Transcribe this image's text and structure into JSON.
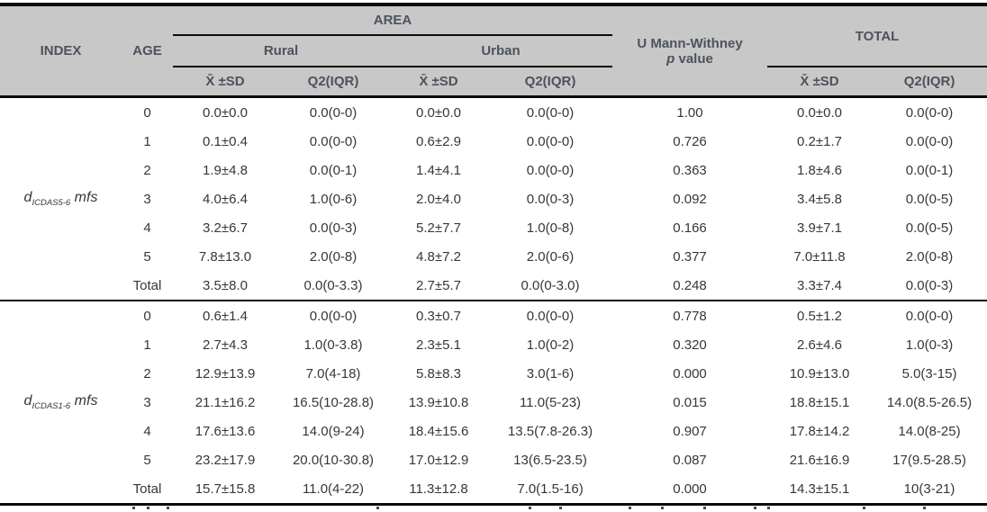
{
  "header": {
    "index": "INDEX",
    "age": "AGE",
    "area": "AREA",
    "rural": "Rural",
    "urban": "Urban",
    "mann_line1": "U Mann-Withney",
    "mann_p": "p",
    "mann_value": "value",
    "total": "TOTAL",
    "xsd": "X̄ ±SD",
    "q2": "Q2(IQR)"
  },
  "columns_order": [
    "age",
    "rural_xsd",
    "rural_q2",
    "urban_xsd",
    "urban_q2",
    "p_value",
    "total_xsd",
    "total_q2"
  ],
  "groups": [
    {
      "label": {
        "base": "d",
        "sub": "ICDAS5-6",
        "suffix": "mfs"
      },
      "rows": [
        [
          "0",
          "0.0±0.0",
          "0.0(0-0)",
          "0.0±0.0",
          "0.0(0-0)",
          "1.00",
          "0.0±0.0",
          "0.0(0-0)"
        ],
        [
          "1",
          "0.1±0.4",
          "0.0(0-0)",
          "0.6±2.9",
          "0.0(0-0)",
          "0.726",
          "0.2±1.7",
          "0.0(0-0)"
        ],
        [
          "2",
          "1.9±4.8",
          "0.0(0-1)",
          "1.4±4.1",
          "0.0(0-0)",
          "0.363",
          "1.8±4.6",
          "0.0(0-1)"
        ],
        [
          "3",
          "4.0±6.4",
          "1.0(0-6)",
          "2.0±4.0",
          "0.0(0-3)",
          "0.092",
          "3.4±5.8",
          "0.0(0-5)"
        ],
        [
          "4",
          "3.2±6.7",
          "0.0(0-3)",
          "5.2±7.7",
          "1.0(0-8)",
          "0.166",
          "3.9±7.1",
          "0.0(0-5)"
        ],
        [
          "5",
          "7.8±13.0",
          "2.0(0-8)",
          "4.8±7.2",
          "2.0(0-6)",
          "0.377",
          "7.0±11.8",
          "2.0(0-8)"
        ],
        [
          "Total",
          "3.5±8.0",
          "0.0(0-3.3)",
          "2.7±5.7",
          "0.0(0-3.0)",
          "0.248",
          "3.3±7.4",
          "0.0(0-3)"
        ]
      ]
    },
    {
      "label": {
        "base": "d",
        "sub": "ICDAS1-6",
        "suffix": "mfs"
      },
      "rows": [
        [
          "0",
          "0.6±1.4",
          "0.0(0-0)",
          "0.3±0.7",
          "0.0(0-0)",
          "0.778",
          "0.5±1.2",
          "0.0(0-0)"
        ],
        [
          "1",
          "2.7±4.3",
          "1.0(0-3.8)",
          "2.3±5.1",
          "1.0(0-2)",
          "0.320",
          "2.6±4.6",
          "1.0(0-3)"
        ],
        [
          "2",
          "12.9±13.9",
          "7.0(4-18)",
          "5.8±8.3",
          "3.0(1-6)",
          "0.000",
          "10.9±13.0",
          "5.0(3-15)"
        ],
        [
          "3",
          "21.1±16.2",
          "16.5(10-28.8)",
          "13.9±10.8",
          "11.0(5-23)",
          "0.015",
          "18.8±15.1",
          "14.0(8.5-26.5)"
        ],
        [
          "4",
          "17.6±13.6",
          "14.0(9-24)",
          "18.4±15.6",
          "13.5(7.8-26.3)",
          "0.907",
          "17.8±14.2",
          "14.0(8-25)"
        ],
        [
          "5",
          "23.2±17.9",
          "20.0(10-30.8)",
          "17.0±12.9",
          "13(6.5-23.5)",
          "0.087",
          "21.6±16.9",
          "17(9.5-28.5)"
        ],
        [
          "Total",
          "15.7±15.8",
          "11.0(4-22)",
          "11.3±12.8",
          "7.0(1.5-16)",
          "0.000",
          "14.3±15.1",
          "10(3-21)"
        ]
      ]
    }
  ],
  "colors": {
    "header_bg": "#c8c8c8",
    "header_text": "#4c525e",
    "body_text": "#33373d",
    "rule": "#0b0b0b"
  }
}
